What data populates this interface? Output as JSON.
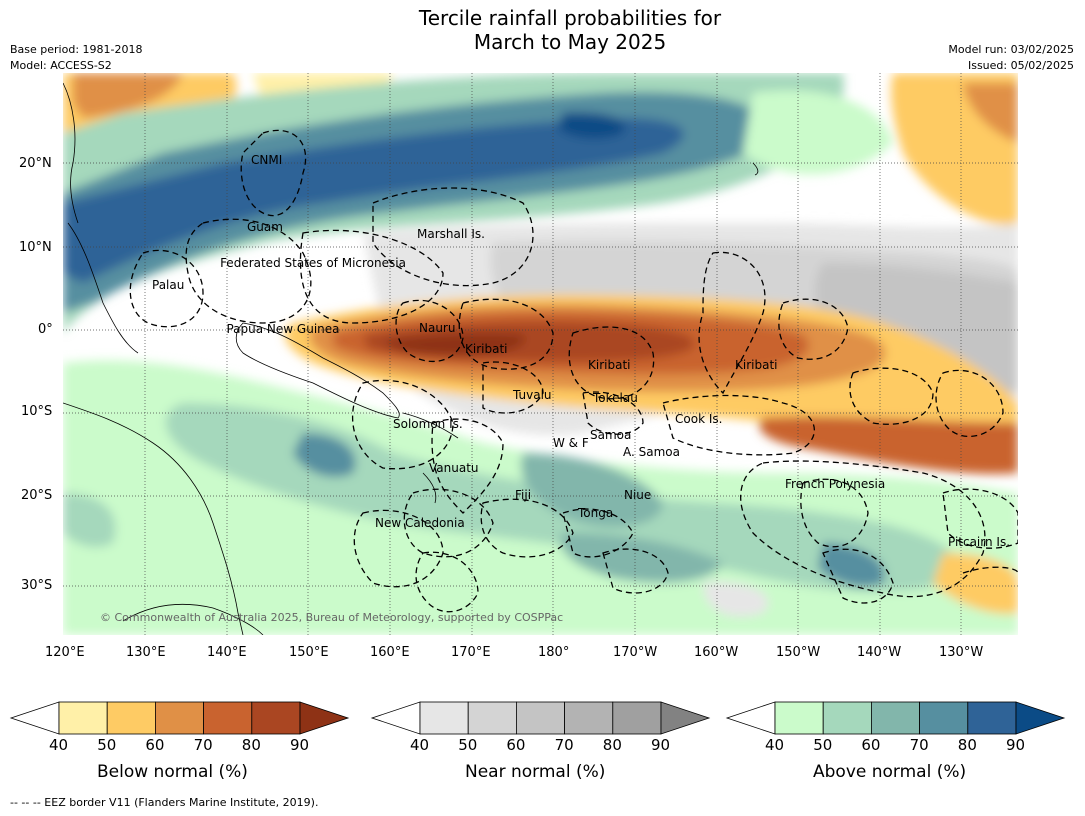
{
  "header": {
    "title": "Tercile rainfall probabilities for\nMarch to May 2025",
    "base_period": "Base period: 1981-2018",
    "model": "Model: ACCESS-S2",
    "model_run": "Model run: 03/02/2025",
    "issued": "Issued: 05/02/2025"
  },
  "map": {
    "copyright": "© Commonwealth of Australia 2025, Bureau of Meteorology, supported by COSPPac",
    "lat_labels": [
      "20°N",
      "10°N",
      "0°",
      "10°S",
      "20°S",
      "30°S"
    ],
    "lon_labels": [
      "120°E",
      "130°E",
      "140°E",
      "150°E",
      "160°E",
      "170°E",
      "180°",
      "170°W",
      "160°W",
      "150°W",
      "140°W",
      "130°W"
    ],
    "regions": [
      {
        "name": "CNMI"
      },
      {
        "name": "Guam"
      },
      {
        "name": "Marshall Is."
      },
      {
        "name": "Federated States of Micronesia"
      },
      {
        "name": "Palau"
      },
      {
        "name": "Papua New Guinea"
      },
      {
        "name": "Nauru"
      },
      {
        "name": "Kiribati"
      },
      {
        "name": "Kiribati"
      },
      {
        "name": "Kiribati"
      },
      {
        "name": "Tuvalu"
      },
      {
        "name": "Tokelau"
      },
      {
        "name": "Cook Is."
      },
      {
        "name": "Solomon Is."
      },
      {
        "name": "Samoa"
      },
      {
        "name": "W & F"
      },
      {
        "name": "A. Samoa"
      },
      {
        "name": "Vanuatu"
      },
      {
        "name": "Fiji"
      },
      {
        "name": "Niue"
      },
      {
        "name": "Tonga"
      },
      {
        "name": "French Polynesia"
      },
      {
        "name": "New Caledonia"
      },
      {
        "name": "Pitcairn Is."
      }
    ]
  },
  "colorbars": [
    {
      "title": "Below normal (%)",
      "ticks": [
        "40",
        "50",
        "60",
        "70",
        "80",
        "90"
      ],
      "colors": [
        "#ffffff",
        "#fff0a8",
        "#fecb64",
        "#e09046",
        "#c9632f",
        "#aa4622",
        "#8e3215"
      ]
    },
    {
      "title": "Near normal (%)",
      "ticks": [
        "40",
        "50",
        "60",
        "70",
        "80",
        "90"
      ],
      "colors": [
        "#ffffff",
        "#e6e6e6",
        "#d4d4d4",
        "#c4c4c4",
        "#b3b3b3",
        "#a0a0a0",
        "#828282"
      ]
    },
    {
      "title": "Above normal (%)",
      "ticks": [
        "40",
        "50",
        "60",
        "70",
        "80",
        "90"
      ],
      "colors": [
        "#ffffff",
        "#cbfbcb",
        "#a5d8bc",
        "#82b6ab",
        "#568fa0",
        "#2f6397",
        "#0b4b86"
      ]
    }
  ],
  "footnote": "--  --  -- EEZ border V11 (Flanders Marine Institute, 2019)."
}
